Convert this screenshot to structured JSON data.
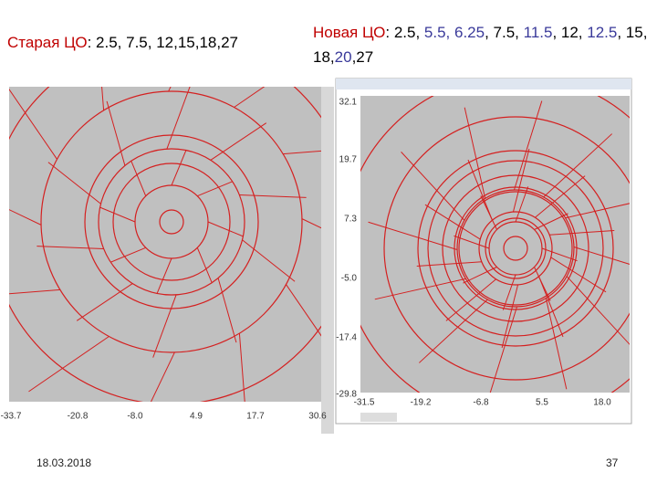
{
  "left": {
    "title": [
      {
        "text": "Старая ЦО",
        "color": "#c00000"
      },
      {
        "text": ": 2.5, 7.5, 12,15,18,27",
        "color": "#000000"
      }
    ],
    "xticks": [
      "-33.7",
      "-20.8",
      "-8.0",
      "4.9",
      "17.7",
      "30.6"
    ]
  },
  "right": {
    "title": [
      {
        "text": "Новая ЦО",
        "color": "#c00000"
      },
      {
        "text": ": 2.5, ",
        "color": "#000000"
      },
      {
        "text": "5.5, 6.25",
        "color": "#3a3a9a"
      },
      {
        "text": ", 7.5, ",
        "color": "#000000"
      },
      {
        "text": "11.5",
        "color": "#3a3a9a"
      },
      {
        "text": ", 12, ",
        "color": "#000000"
      },
      {
        "text": "12.5",
        "color": "#3a3a9a"
      },
      {
        "text": ", 15, 18,",
        "color": "#000000"
      },
      {
        "text": "20",
        "color": "#3a3a9a"
      },
      {
        "text": ",27",
        "color": "#000000"
      }
    ],
    "yticks": [
      "32.1",
      "19.7",
      "7.3",
      "-5.0",
      "-17.4",
      "-29.8"
    ],
    "xticks": [
      "-31.5",
      "-19.2",
      "-6.8",
      "5.5",
      "18.0"
    ]
  },
  "footer": {
    "date": "18.03.2018",
    "page": "37"
  }
}
